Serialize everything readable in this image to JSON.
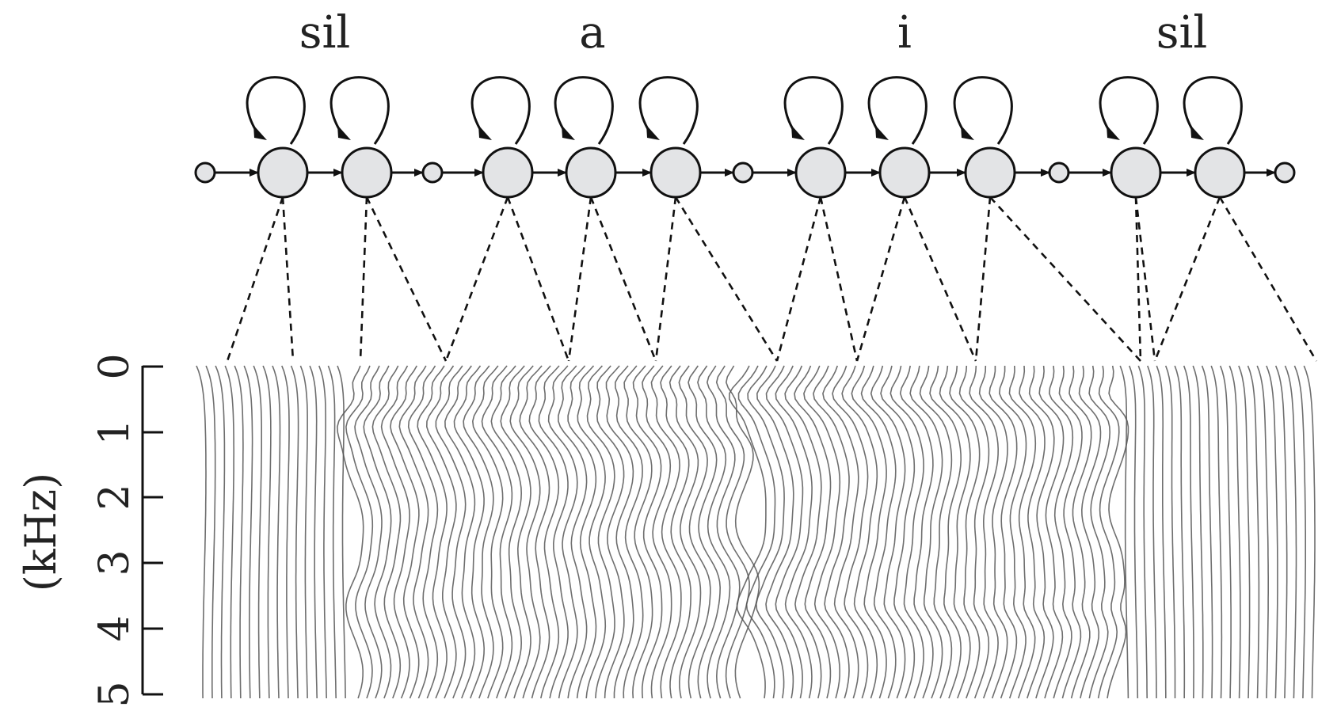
{
  "phones": [
    "sil",
    "a",
    "i",
    "sil"
  ],
  "phone_states": [
    2,
    3,
    3,
    2
  ],
  "axis": {
    "title": "(kHz)",
    "ticks": [
      "0",
      "1",
      "2",
      "3",
      "4",
      "5"
    ]
  },
  "colors": {
    "ink": "#111111",
    "state_fill": "#e3e4e6",
    "trace": "#555555"
  }
}
